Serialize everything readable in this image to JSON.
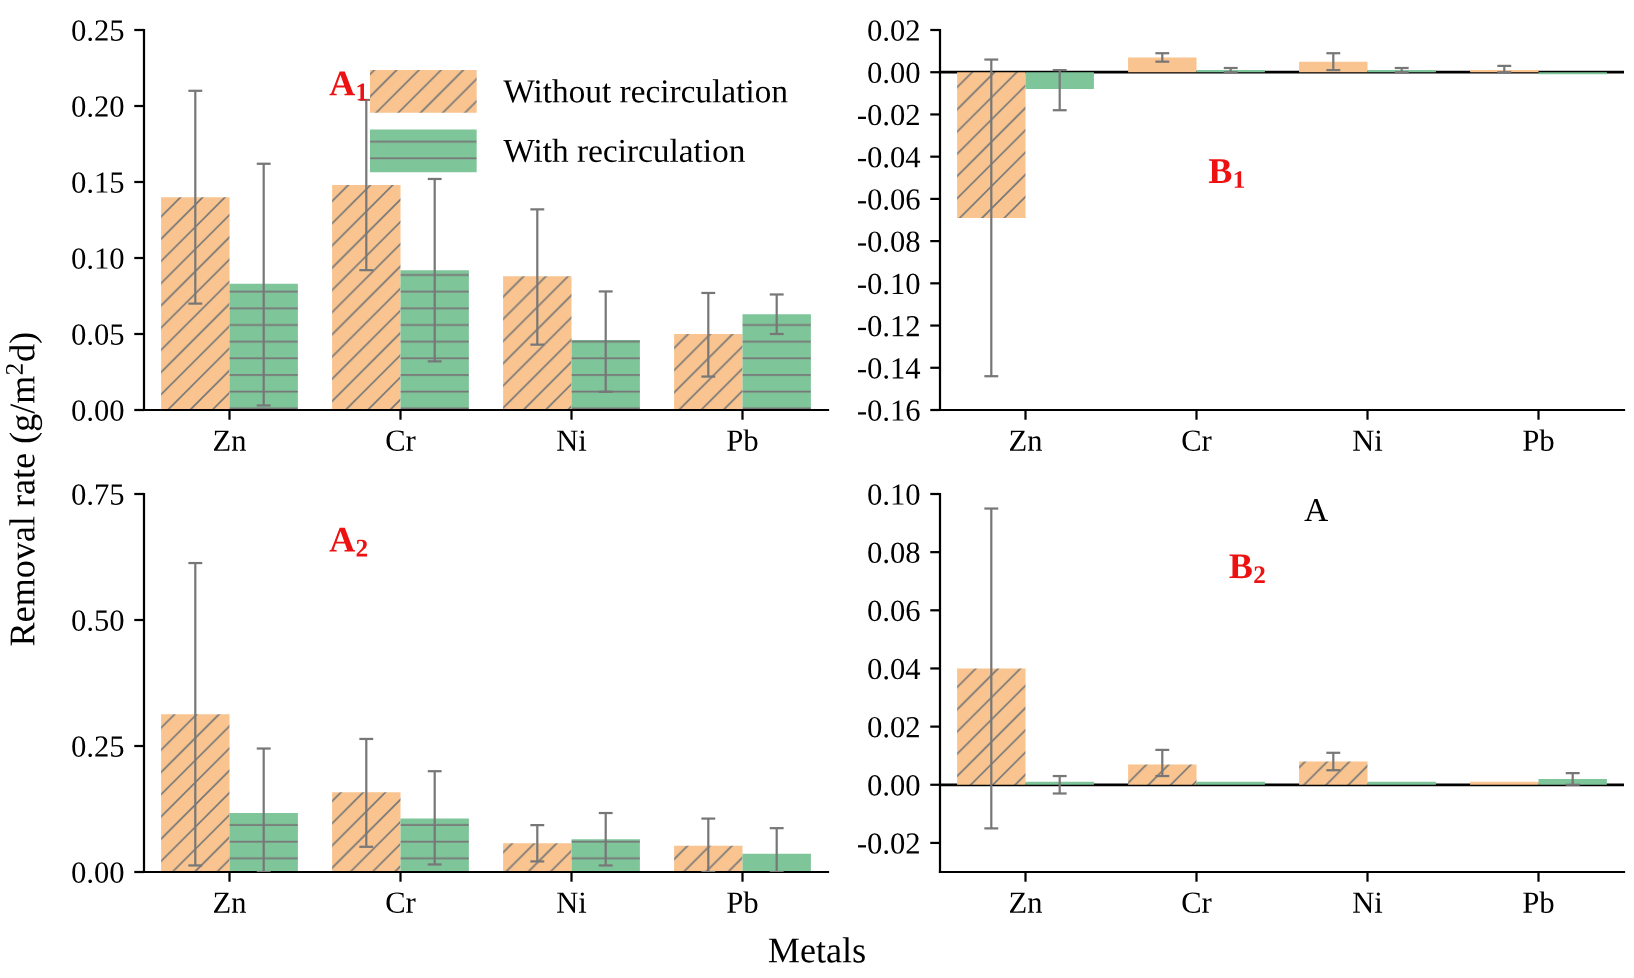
{
  "chart_data": [
    {
      "type": "bar",
      "categories": [
        "Zn",
        "Cr",
        "Ni",
        "Pb"
      ],
      "ylabel": "Removal rate (g/m$^{2}$d)",
      "ylim": [
        0,
        0.25
      ],
      "yticks": [
        {
          "value": 0,
          "label": "0.00"
        },
        {
          "value": 0.05,
          "label": "0.05"
        },
        {
          "value": 0.1,
          "label": "0.10"
        },
        {
          "value": 0.15,
          "label": "0.15"
        },
        {
          "value": 0.2,
          "label": "0.20"
        },
        {
          "value": 0.25,
          "label": "0.25"
        }
      ],
      "legend": "top right",
      "grid": false,
      "annotations": [
        "A$_{1}$"
      ],
      "series": [
        {
          "name": "Without recirculation",
          "color": "#f9c48f",
          "values": [
            0.14,
            0.148,
            0.088,
            0.05
          ],
          "errors": [
            [
              0.07,
              0.21
            ],
            [
              0.092,
              0.204
            ],
            [
              0.043,
              0.132
            ],
            [
              0.022,
              0.077
            ]
          ]
        },
        {
          "name": "With recirculation",
          "color": "#7fc59a",
          "values": [
            0.083,
            0.092,
            0.046,
            0.063
          ],
          "errors": [
            [
              0.003,
              0.162
            ],
            [
              0.032,
              0.152
            ],
            [
              0.012,
              0.078
            ],
            [
              0.05,
              0.076
            ]
          ]
        }
      ]
    },
    {
      "type": "bar",
      "categories": [
        "Zn",
        "Cr",
        "Ni",
        "Pb"
      ],
      "ylim": [
        -0.16,
        0.02
      ],
      "yticks": [
        {
          "value": -0.16,
          "label": "-0.16"
        },
        {
          "value": -0.14,
          "label": "-0.14"
        },
        {
          "value": -0.12,
          "label": "-0.12"
        },
        {
          "value": -0.1,
          "label": "-0.10"
        },
        {
          "value": -0.08,
          "label": "-0.08"
        },
        {
          "value": -0.06,
          "label": "-0.06"
        },
        {
          "value": -0.04,
          "label": "-0.04"
        },
        {
          "value": -0.02,
          "label": "-0.02"
        },
        {
          "value": 0,
          "label": "0.00"
        },
        {
          "value": 0.02,
          "label": "0.02"
        }
      ],
      "grid": false,
      "annotations": [
        "B$_{1}$"
      ],
      "ref_lines": [
        {
          "axis": "y",
          "value": 0,
          "color": "#000000"
        }
      ],
      "series": [
        {
          "color": "#f9c48f",
          "values": [
            -0.069,
            0.007,
            0.005,
            0.001
          ],
          "errors": [
            [
              -0.144,
              0.006
            ],
            [
              0.005,
              0.009
            ],
            [
              0.001,
              0.009
            ],
            [
              0.0,
              0.003
            ]
          ]
        },
        {
          "color": "#7fc59a",
          "values": [
            -0.008,
            0.001,
            0.001,
            -0.001
          ],
          "errors": [
            [
              -0.018,
              0.001
            ],
            [
              0.0,
              0.002
            ],
            [
              0.0,
              0.002
            ],
            null
          ]
        }
      ]
    },
    {
      "type": "bar",
      "categories": [
        "Zn",
        "Cr",
        "Ni",
        "Pb"
      ],
      "xlabel": "Metals",
      "ylim": [
        0,
        0.75
      ],
      "yticks": [
        {
          "value": 0,
          "label": "0.00"
        },
        {
          "value": 0.25,
          "label": "0.25"
        },
        {
          "value": 0.5,
          "label": "0.50"
        },
        {
          "value": 0.75,
          "label": "0.75"
        }
      ],
      "grid": false,
      "annotations": [
        "A$_{2}$"
      ],
      "series": [
        {
          "color": "#f9c48f",
          "values": [
            0.313,
            0.158,
            0.057,
            0.052
          ],
          "errors": [
            [
              0.013,
              0.613
            ],
            [
              0.05,
              0.264
            ],
            [
              0.021,
              0.093
            ],
            [
              0.0,
              0.106
            ]
          ]
        },
        {
          "color": "#7fc59a",
          "values": [
            0.117,
            0.106,
            0.065,
            0.036
          ],
          "errors": [
            [
              0.0,
              0.245
            ],
            [
              0.015,
              0.2
            ],
            [
              0.013,
              0.117
            ],
            [
              0.0,
              0.087
            ]
          ]
        }
      ]
    },
    {
      "type": "bar",
      "categories": [
        "Zn",
        "Cr",
        "Ni",
        "Pb"
      ],
      "ylim": [
        -0.03,
        0.1
      ],
      "yticks": [
        {
          "value": -0.02,
          "label": "-0.02"
        },
        {
          "value": 0,
          "label": "0.00"
        },
        {
          "value": 0.02,
          "label": "0.02"
        },
        {
          "value": 0.04,
          "label": "0.04"
        },
        {
          "value": 0.06,
          "label": "0.06"
        },
        {
          "value": 0.08,
          "label": "0.08"
        },
        {
          "value": 0.1,
          "label": "0.10"
        }
      ],
      "grid": false,
      "annotations": [
        "A",
        "B$_{2}$"
      ],
      "ref_lines": [
        {
          "axis": "y",
          "value": 0,
          "color": "#000000"
        }
      ],
      "series": [
        {
          "color": "#f9c48f",
          "values": [
            0.04,
            0.007,
            0.008,
            0.001
          ],
          "errors": [
            [
              -0.015,
              0.095
            ],
            [
              0.003,
              0.012
            ],
            [
              0.005,
              0.011
            ],
            null
          ]
        },
        {
          "color": "#7fc59a",
          "values": [
            0.001,
            0.001,
            0.001,
            0.002
          ],
          "errors": [
            [
              -0.003,
              0.003
            ],
            null,
            null,
            [
              0.0,
              0.004
            ]
          ]
        }
      ]
    }
  ]
}
